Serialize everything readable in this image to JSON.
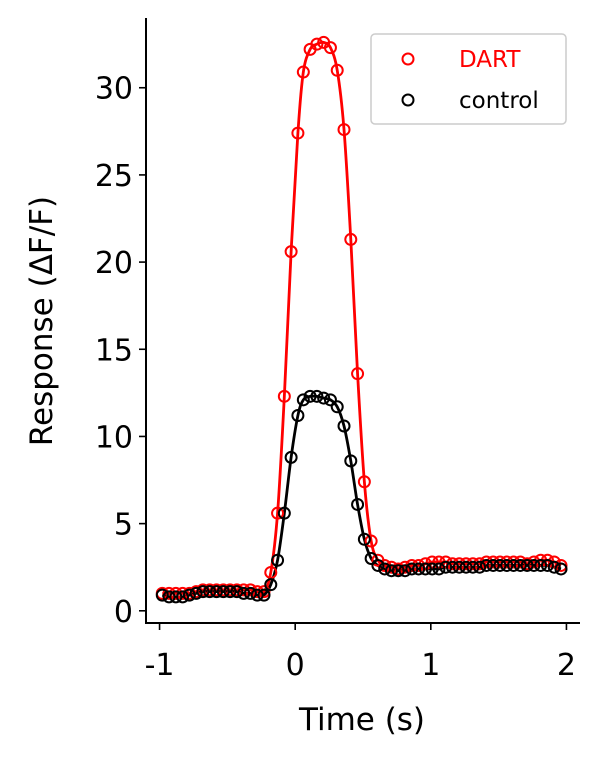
{
  "colors": {
    "DART": "#ff0000",
    "control": "#000000"
  },
  "chart_data": {
    "type": "line",
    "title": "",
    "xlabel": "Time (s)",
    "ylabel": "Response (ΔF/F)",
    "xlim": [
      -1.1,
      2.1
    ],
    "ylim": [
      -0.7,
      34.0
    ],
    "xticks": [
      -1,
      0,
      1,
      2
    ],
    "xtick_labels": [
      "-1",
      "0",
      "1",
      "2"
    ],
    "yticks": [
      0,
      5,
      10,
      15,
      20,
      25,
      30
    ],
    "ytick_labels": [
      "0",
      "5",
      "10",
      "15",
      "20",
      "25",
      "30"
    ],
    "grid": false,
    "legend": {
      "position": "top-right",
      "entries": [
        "DART",
        "control"
      ]
    },
    "series": [
      {
        "name": "DART",
        "color": "#ff0000",
        "marker": "open-circle",
        "fit_line": true,
        "x": [
          -0.98,
          -0.93,
          -0.88,
          -0.83,
          -0.78,
          -0.73,
          -0.68,
          -0.63,
          -0.58,
          -0.53,
          -0.48,
          -0.43,
          -0.38,
          -0.33,
          -0.28,
          -0.23,
          -0.18,
          -0.13,
          -0.08,
          -0.03,
          0.02,
          0.06,
          0.11,
          0.16,
          0.21,
          0.26,
          0.31,
          0.36,
          0.41,
          0.46,
          0.51,
          0.56,
          0.61,
          0.66,
          0.71,
          0.76,
          0.81,
          0.86,
          0.91,
          0.96,
          1.01,
          1.06,
          1.11,
          1.16,
          1.21,
          1.26,
          1.31,
          1.36,
          1.41,
          1.46,
          1.51,
          1.56,
          1.61,
          1.66,
          1.71,
          1.76,
          1.81,
          1.86,
          1.91,
          1.96
        ],
        "y": [
          1.0,
          1.0,
          1.0,
          1.0,
          1.0,
          1.1,
          1.2,
          1.2,
          1.2,
          1.2,
          1.2,
          1.2,
          1.2,
          1.2,
          1.1,
          1.1,
          2.2,
          5.6,
          12.3,
          20.6,
          27.4,
          30.9,
          32.2,
          32.5,
          32.6,
          32.3,
          31.0,
          27.6,
          21.3,
          13.6,
          7.4,
          4.0,
          2.9,
          2.6,
          2.5,
          2.4,
          2.5,
          2.6,
          2.6,
          2.7,
          2.8,
          2.8,
          2.8,
          2.7,
          2.7,
          2.7,
          2.7,
          2.7,
          2.8,
          2.8,
          2.8,
          2.8,
          2.8,
          2.8,
          2.7,
          2.8,
          2.9,
          2.9,
          2.8,
          2.6
        ]
      },
      {
        "name": "control",
        "color": "#000000",
        "marker": "open-circle",
        "fit_line": true,
        "x": [
          -0.98,
          -0.93,
          -0.88,
          -0.83,
          -0.78,
          -0.73,
          -0.68,
          -0.63,
          -0.58,
          -0.53,
          -0.48,
          -0.43,
          -0.38,
          -0.33,
          -0.28,
          -0.23,
          -0.18,
          -0.13,
          -0.08,
          -0.03,
          0.02,
          0.06,
          0.11,
          0.16,
          0.21,
          0.26,
          0.31,
          0.36,
          0.41,
          0.46,
          0.51,
          0.56,
          0.61,
          0.66,
          0.71,
          0.76,
          0.81,
          0.86,
          0.91,
          0.96,
          1.01,
          1.06,
          1.11,
          1.16,
          1.21,
          1.26,
          1.31,
          1.36,
          1.41,
          1.46,
          1.51,
          1.56,
          1.61,
          1.66,
          1.71,
          1.76,
          1.81,
          1.86,
          1.91,
          1.96
        ],
        "y": [
          0.9,
          0.8,
          0.8,
          0.8,
          0.9,
          1.0,
          1.1,
          1.1,
          1.1,
          1.1,
          1.1,
          1.1,
          1.0,
          1.0,
          0.9,
          0.9,
          1.5,
          2.9,
          5.6,
          8.8,
          11.2,
          12.1,
          12.3,
          12.3,
          12.2,
          12.1,
          11.7,
          10.6,
          8.6,
          6.1,
          4.1,
          3.0,
          2.6,
          2.4,
          2.3,
          2.3,
          2.3,
          2.4,
          2.4,
          2.4,
          2.4,
          2.4,
          2.5,
          2.5,
          2.5,
          2.5,
          2.5,
          2.5,
          2.6,
          2.6,
          2.6,
          2.6,
          2.6,
          2.6,
          2.6,
          2.6,
          2.6,
          2.6,
          2.5,
          2.4
        ]
      }
    ]
  }
}
